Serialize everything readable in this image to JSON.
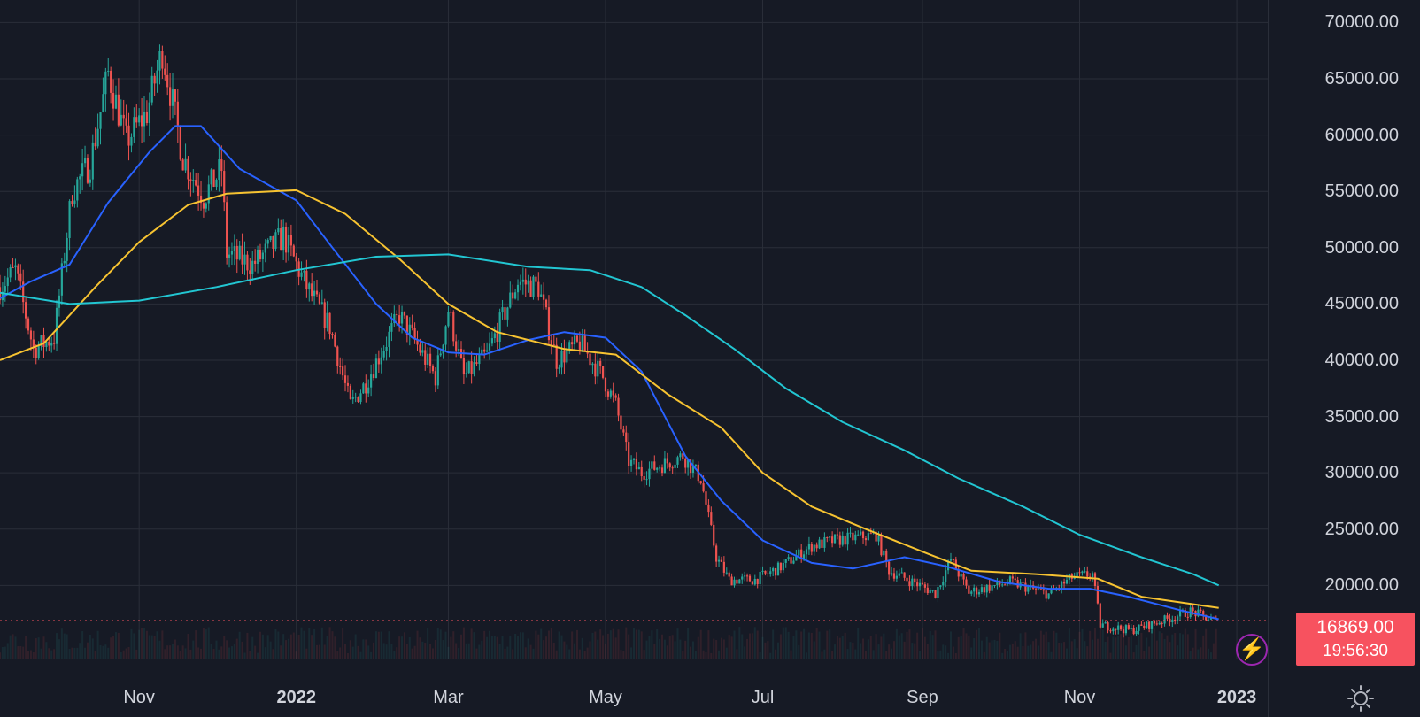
{
  "chart_data": {
    "type": "candlestick",
    "symbol_timeframe": "1D",
    "price_axis": {
      "ticks": [
        "70000.00",
        "65000.00",
        "60000.00",
        "55000.00",
        "50000.00",
        "45000.00",
        "40000.00",
        "35000.00",
        "30000.00",
        "25000.00",
        "20000.00"
      ],
      "ylim": [
        13500,
        72000
      ]
    },
    "time_axis": {
      "ticks": [
        {
          "label": "Nov",
          "date": "2021-11-01",
          "year": false
        },
        {
          "label": "2022",
          "date": "2022-01-01",
          "year": true
        },
        {
          "label": "Mar",
          "date": "2022-03-01",
          "year": false
        },
        {
          "label": "May",
          "date": "2022-05-01",
          "year": false
        },
        {
          "label": "Jul",
          "date": "2022-07-01",
          "year": false
        },
        {
          "label": "Sep",
          "date": "2022-09-01",
          "year": false
        },
        {
          "label": "Nov",
          "date": "2022-11-01",
          "year": false
        },
        {
          "label": "2023",
          "date": "2023-01-01",
          "year": true
        }
      ],
      "xlim": [
        "2021-09-08",
        "2023-01-13"
      ]
    },
    "price_keypoints": [
      {
        "date": "2021-09-08",
        "value": 46500
      },
      {
        "date": "2021-09-14",
        "value": 48000
      },
      {
        "date": "2021-09-21",
        "value": 41000
      },
      {
        "date": "2021-09-29",
        "value": 42000
      },
      {
        "date": "2021-10-06",
        "value": 55000
      },
      {
        "date": "2021-10-13",
        "value": 57500
      },
      {
        "date": "2021-10-20",
        "value": 65500
      },
      {
        "date": "2021-10-27",
        "value": 59500
      },
      {
        "date": "2021-11-04",
        "value": 62000
      },
      {
        "date": "2021-11-10",
        "value": 67500
      },
      {
        "date": "2021-11-18",
        "value": 58000
      },
      {
        "date": "2021-11-26",
        "value": 54500
      },
      {
        "date": "2021-12-03",
        "value": 57000
      },
      {
        "date": "2021-12-05",
        "value": 49500
      },
      {
        "date": "2021-12-15",
        "value": 48500
      },
      {
        "date": "2021-12-27",
        "value": 51000
      },
      {
        "date": "2022-01-05",
        "value": 46500
      },
      {
        "date": "2022-01-14",
        "value": 43000
      },
      {
        "date": "2022-01-22",
        "value": 36000
      },
      {
        "date": "2022-01-28",
        "value": 38000
      },
      {
        "date": "2022-02-10",
        "value": 44000
      },
      {
        "date": "2022-02-14",
        "value": 42500
      },
      {
        "date": "2022-02-24",
        "value": 38500
      },
      {
        "date": "2022-03-01",
        "value": 44500
      },
      {
        "date": "2022-03-07",
        "value": 38500
      },
      {
        "date": "2022-03-16",
        "value": 40500
      },
      {
        "date": "2022-03-28",
        "value": 47000
      },
      {
        "date": "2022-04-05",
        "value": 46500
      },
      {
        "date": "2022-04-12",
        "value": 40000
      },
      {
        "date": "2022-04-21",
        "value": 41500
      },
      {
        "date": "2022-04-30",
        "value": 38500
      },
      {
        "date": "2022-05-05",
        "value": 36000
      },
      {
        "date": "2022-05-10",
        "value": 31000
      },
      {
        "date": "2022-05-15",
        "value": 30000
      },
      {
        "date": "2022-05-31",
        "value": 31500
      },
      {
        "date": "2022-06-07",
        "value": 29500
      },
      {
        "date": "2022-06-13",
        "value": 22500
      },
      {
        "date": "2022-06-18",
        "value": 20500
      },
      {
        "date": "2022-06-28",
        "value": 20500
      },
      {
        "date": "2022-07-07",
        "value": 21500
      },
      {
        "date": "2022-07-20",
        "value": 23500
      },
      {
        "date": "2022-07-29",
        "value": 24000
      },
      {
        "date": "2022-08-14",
        "value": 24500
      },
      {
        "date": "2022-08-19",
        "value": 21300
      },
      {
        "date": "2022-08-31",
        "value": 20000
      },
      {
        "date": "2022-09-06",
        "value": 19300
      },
      {
        "date": "2022-09-12",
        "value": 22300
      },
      {
        "date": "2022-09-19",
        "value": 19400
      },
      {
        "date": "2022-10-05",
        "value": 20300
      },
      {
        "date": "2022-10-20",
        "value": 19200
      },
      {
        "date": "2022-10-29",
        "value": 20700
      },
      {
        "date": "2022-11-06",
        "value": 21000
      },
      {
        "date": "2022-11-09",
        "value": 16500
      },
      {
        "date": "2022-11-21",
        "value": 16000
      },
      {
        "date": "2022-12-05",
        "value": 17000
      },
      {
        "date": "2022-12-14",
        "value": 17700
      },
      {
        "date": "2022-12-24",
        "value": 16800
      }
    ],
    "moving_averages": [
      {
        "color": "#2962ff",
        "points": [
          {
            "date": "2021-09-08",
            "value": 45500
          },
          {
            "date": "2021-09-20",
            "value": 47000
          },
          {
            "date": "2021-10-05",
            "value": 48500
          },
          {
            "date": "2021-10-20",
            "value": 54000
          },
          {
            "date": "2021-11-05",
            "value": 58500
          },
          {
            "date": "2021-11-15",
            "value": 60800
          },
          {
            "date": "2021-11-25",
            "value": 60800
          },
          {
            "date": "2021-12-10",
            "value": 57000
          },
          {
            "date": "2022-01-01",
            "value": 54200
          },
          {
            "date": "2022-01-15",
            "value": 50000
          },
          {
            "date": "2022-02-01",
            "value": 45000
          },
          {
            "date": "2022-02-15",
            "value": 42000
          },
          {
            "date": "2022-03-01",
            "value": 40700
          },
          {
            "date": "2022-03-15",
            "value": 40500
          },
          {
            "date": "2022-04-01",
            "value": 41800
          },
          {
            "date": "2022-04-15",
            "value": 42500
          },
          {
            "date": "2022-05-01",
            "value": 42000
          },
          {
            "date": "2022-05-15",
            "value": 39000
          },
          {
            "date": "2022-06-01",
            "value": 31500
          },
          {
            "date": "2022-06-15",
            "value": 27500
          },
          {
            "date": "2022-07-01",
            "value": 24000
          },
          {
            "date": "2022-07-20",
            "value": 22000
          },
          {
            "date": "2022-08-05",
            "value": 21500
          },
          {
            "date": "2022-08-25",
            "value": 22500
          },
          {
            "date": "2022-09-10",
            "value": 21700
          },
          {
            "date": "2022-10-01",
            "value": 20300
          },
          {
            "date": "2022-10-20",
            "value": 19700
          },
          {
            "date": "2022-11-05",
            "value": 19700
          },
          {
            "date": "2022-11-20",
            "value": 19000
          },
          {
            "date": "2022-12-10",
            "value": 17800
          },
          {
            "date": "2022-12-25",
            "value": 17000
          }
        ]
      },
      {
        "color": "#f7c331",
        "points": [
          {
            "date": "2021-09-08",
            "value": 40000
          },
          {
            "date": "2021-09-25",
            "value": 41500
          },
          {
            "date": "2021-10-15",
            "value": 46500
          },
          {
            "date": "2021-11-01",
            "value": 50500
          },
          {
            "date": "2021-11-20",
            "value": 53800
          },
          {
            "date": "2021-12-05",
            "value": 54800
          },
          {
            "date": "2022-01-01",
            "value": 55100
          },
          {
            "date": "2022-01-20",
            "value": 53000
          },
          {
            "date": "2022-02-10",
            "value": 49000
          },
          {
            "date": "2022-03-01",
            "value": 45000
          },
          {
            "date": "2022-03-20",
            "value": 42500
          },
          {
            "date": "2022-04-15",
            "value": 41000
          },
          {
            "date": "2022-05-05",
            "value": 40500
          },
          {
            "date": "2022-05-25",
            "value": 37000
          },
          {
            "date": "2022-06-15",
            "value": 34000
          },
          {
            "date": "2022-07-01",
            "value": 30000
          },
          {
            "date": "2022-07-20",
            "value": 27000
          },
          {
            "date": "2022-08-10",
            "value": 25000
          },
          {
            "date": "2022-09-01",
            "value": 23000
          },
          {
            "date": "2022-09-20",
            "value": 21300
          },
          {
            "date": "2022-10-15",
            "value": 21000
          },
          {
            "date": "2022-11-08",
            "value": 20600
          },
          {
            "date": "2022-11-25",
            "value": 19000
          },
          {
            "date": "2022-12-25",
            "value": 18000
          }
        ]
      },
      {
        "color": "#22c6d2",
        "points": [
          {
            "date": "2021-09-08",
            "value": 46000
          },
          {
            "date": "2021-10-05",
            "value": 45000
          },
          {
            "date": "2021-11-01",
            "value": 45300
          },
          {
            "date": "2021-12-01",
            "value": 46500
          },
          {
            "date": "2022-01-01",
            "value": 48000
          },
          {
            "date": "2022-02-01",
            "value": 49200
          },
          {
            "date": "2022-03-01",
            "value": 49400
          },
          {
            "date": "2022-04-01",
            "value": 48300
          },
          {
            "date": "2022-04-25",
            "value": 48000
          },
          {
            "date": "2022-05-15",
            "value": 46500
          },
          {
            "date": "2022-06-01",
            "value": 44000
          },
          {
            "date": "2022-06-20",
            "value": 41000
          },
          {
            "date": "2022-07-10",
            "value": 37500
          },
          {
            "date": "2022-08-01",
            "value": 34500
          },
          {
            "date": "2022-08-25",
            "value": 32000
          },
          {
            "date": "2022-09-15",
            "value": 29500
          },
          {
            "date": "2022-10-10",
            "value": 27000
          },
          {
            "date": "2022-11-01",
            "value": 24500
          },
          {
            "date": "2022-11-25",
            "value": 22500
          },
          {
            "date": "2022-12-15",
            "value": 21000
          },
          {
            "date": "2022-12-25",
            "value": 20000
          }
        ]
      }
    ],
    "last_price": {
      "value": 16869.0,
      "label": "16869.00",
      "countdown": "19:56:30"
    }
  },
  "colors": {
    "background": "#161a25",
    "grid": "#2a2e39",
    "up": "#26a69a",
    "down": "#ef5350",
    "badge": "#f7525f"
  },
  "icons": {
    "bolt": "lightning-bolt-icon",
    "settings": "gear-icon"
  }
}
